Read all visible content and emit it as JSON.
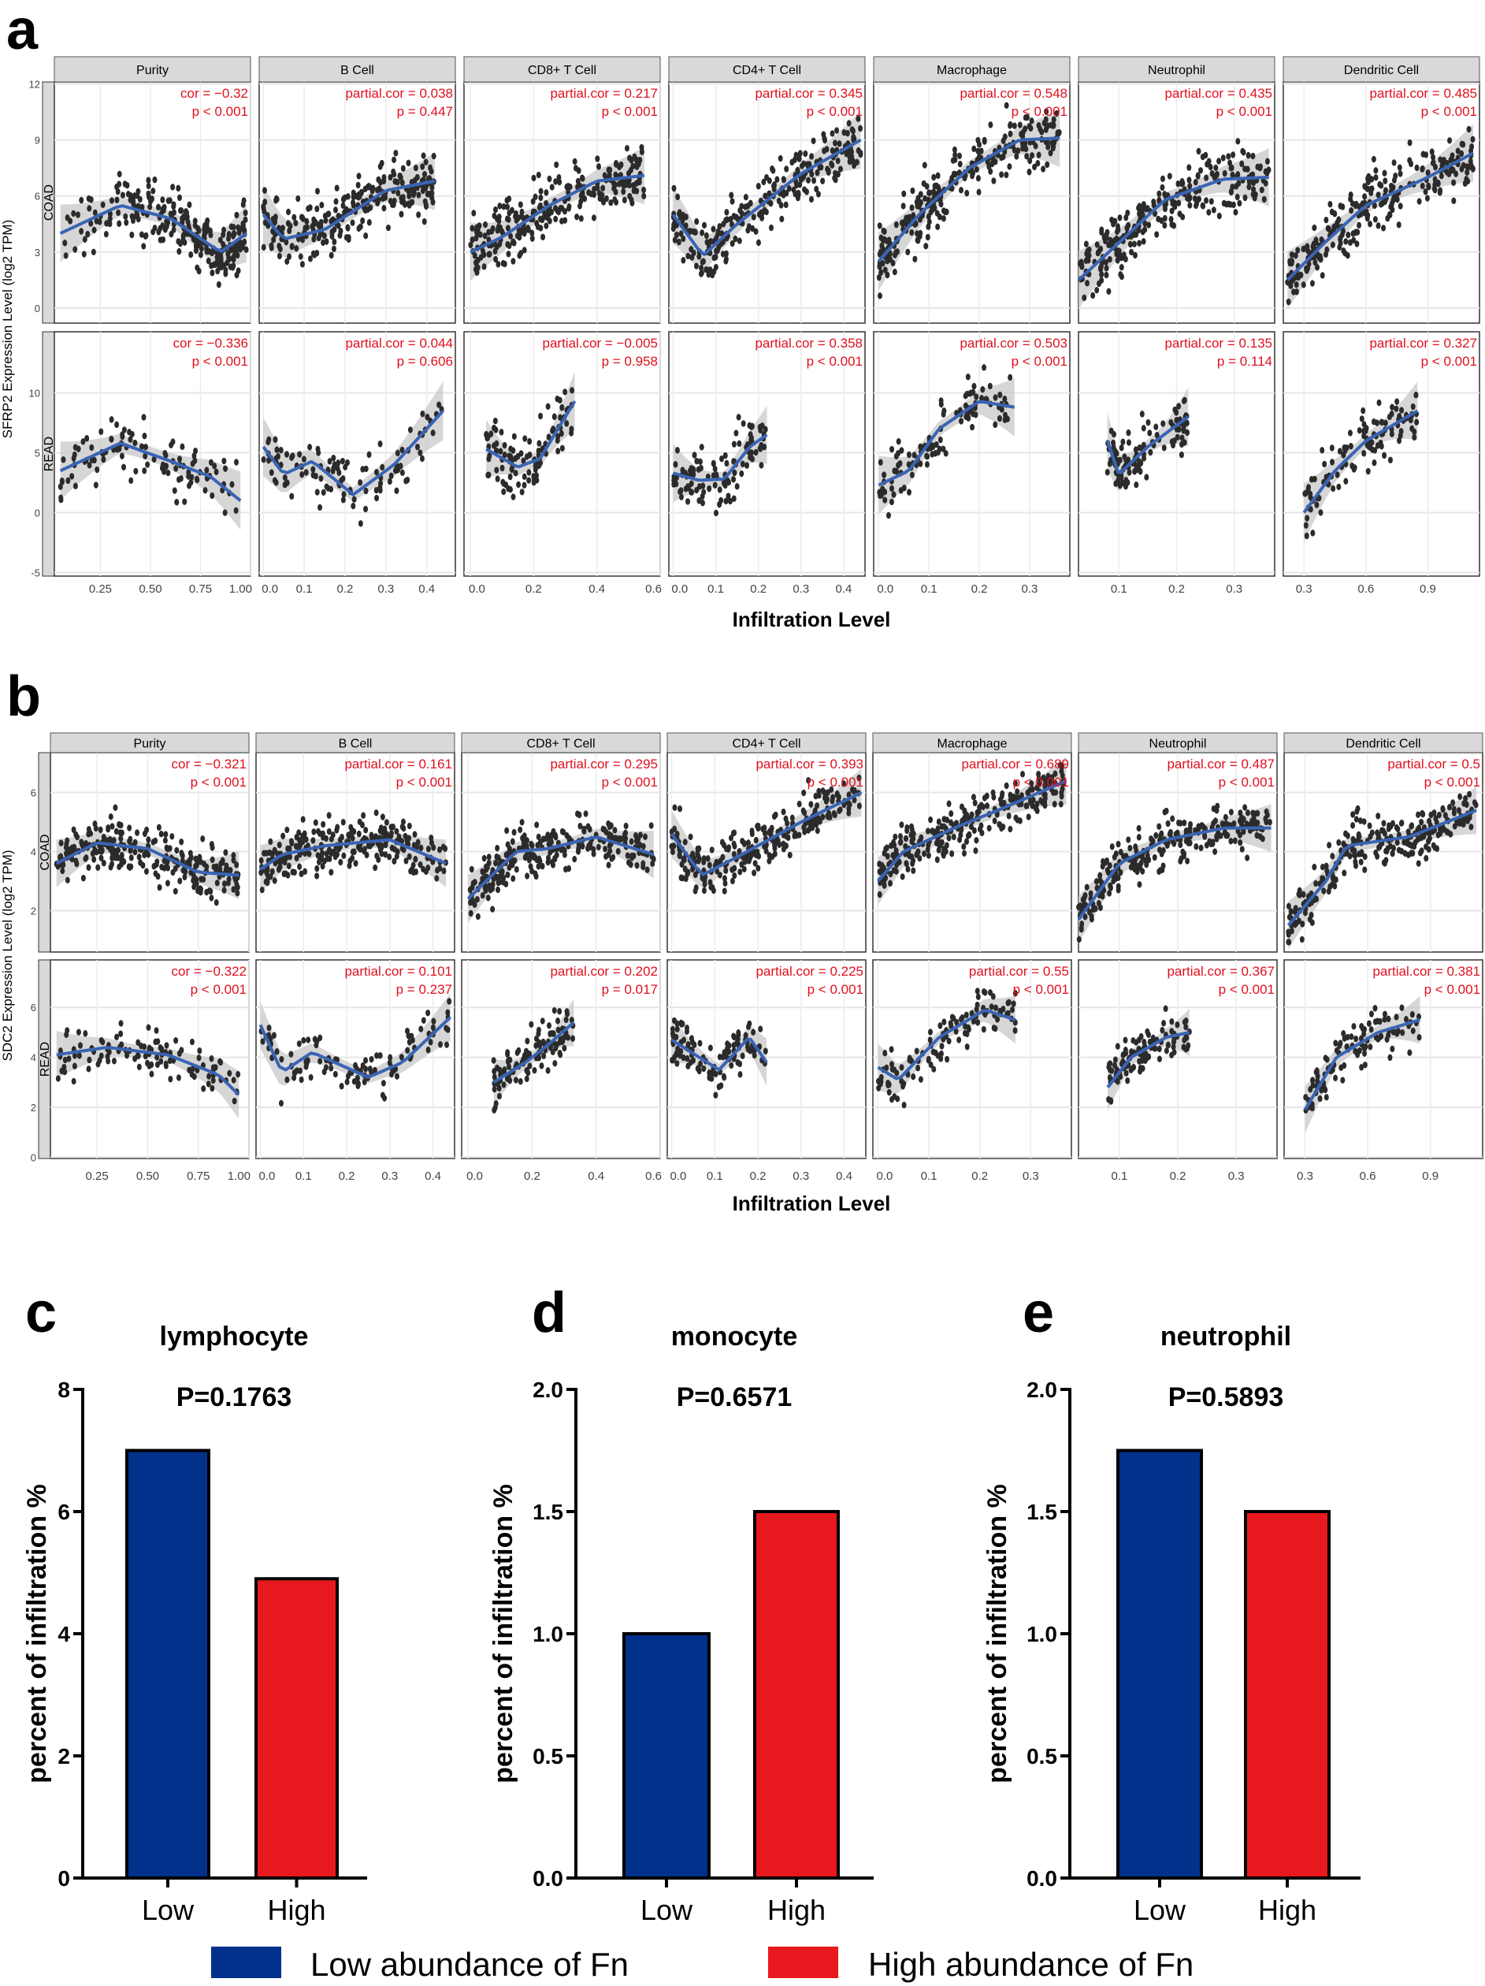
{
  "colors": {
    "low": "#02318c",
    "high": "#e8191e",
    "trend": "#3a64b4",
    "annotation": "#e0101e",
    "point": "#2b2b2b",
    "strip": "#d9d9d9"
  },
  "chart_data": [
    {
      "type": "scatter",
      "panel_label": "a",
      "ylabel": "SFRP2 Expression Level (log2 TPM)",
      "xlabel": "Infiltration Level",
      "facets": [
        "Purity",
        "B Cell",
        "CD8+ T Cell",
        "CD4+ T Cell",
        "Macrophage",
        "Neutrophil",
        "Dendritic Cell"
      ],
      "xlim": [
        [
          0.02,
          1.0
        ],
        [
          -0.01,
          0.47
        ],
        [
          -0.02,
          0.6
        ],
        [
          -0.01,
          0.45
        ],
        [
          -0.01,
          0.38
        ],
        [
          0.03,
          0.37
        ],
        [
          0.2,
          1.15
        ]
      ],
      "xticks": [
        [
          "0.25",
          "0.50",
          "0.75",
          "1.00"
        ],
        [
          "0.0",
          "0.1",
          "0.2",
          "0.3",
          "0.4"
        ],
        [
          "0.0",
          "0.2",
          "0.4",
          "0.6"
        ],
        [
          "0.0",
          "0.1",
          "0.2",
          "0.3",
          "0.4"
        ],
        [
          "0.0",
          "0.1",
          "0.2",
          "0.3"
        ],
        [
          "0.1",
          "0.2",
          "0.3"
        ],
        [
          "0.3",
          "0.6",
          "0.9"
        ]
      ],
      "rows": [
        {
          "name": "COAD",
          "ylim": [
            -0.8,
            12.1
          ],
          "yticks": [
            "0",
            "3",
            "6",
            "9",
            "12"
          ],
          "annotations": [
            [
              "cor = −0.32",
              "p < 0.001"
            ],
            [
              "partial.cor = 0.038",
              "p = 0.447"
            ],
            [
              "partial.cor = 0.217",
              "p < 0.001"
            ],
            [
              "partial.cor = 0.345",
              "p < 0.001"
            ],
            [
              "partial.cor = 0.548",
              "p < 0.001"
            ],
            [
              "partial.cor = 0.435",
              "p < 0.001"
            ],
            [
              "partial.cor = 0.485",
              "p < 0.001"
            ]
          ],
          "trend": [
            [
              [
                0.05,
                4
              ],
              [
                0.35,
                5.5
              ],
              [
                0.6,
                4.8
              ],
              [
                0.85,
                3
              ],
              [
                0.98,
                4
              ]
            ],
            [
              [
                0.0,
                5
              ],
              [
                0.05,
                3.7
              ],
              [
                0.15,
                4.2
              ],
              [
                0.3,
                6.3
              ],
              [
                0.42,
                6.8
              ]
            ],
            [
              [
                0.0,
                3
              ],
              [
                0.1,
                3.8
              ],
              [
                0.25,
                5.5
              ],
              [
                0.4,
                6.8
              ],
              [
                0.55,
                7.1
              ]
            ],
            [
              [
                0.0,
                5
              ],
              [
                0.07,
                2.8
              ],
              [
                0.15,
                4.5
              ],
              [
                0.3,
                7.2
              ],
              [
                0.44,
                9
              ]
            ],
            [
              [
                0.0,
                2.5
              ],
              [
                0.08,
                5
              ],
              [
                0.18,
                7.5
              ],
              [
                0.28,
                9
              ],
              [
                0.36,
                9.1
              ]
            ],
            [
              [
                0.03,
                1.5
              ],
              [
                0.1,
                3.5
              ],
              [
                0.18,
                5.8
              ],
              [
                0.28,
                6.9
              ],
              [
                0.36,
                7
              ]
            ],
            [
              [
                0.22,
                1.5
              ],
              [
                0.4,
                3.5
              ],
              [
                0.6,
                5.5
              ],
              [
                0.9,
                7
              ],
              [
                1.12,
                8.3
              ]
            ]
          ]
        },
        {
          "name": "READ",
          "ylim": [
            -5.3,
            15.1
          ],
          "yticks": [
            "-5",
            "0",
            "5",
            "10"
          ],
          "annotations": [
            [
              "cor = −0.336",
              "p < 0.001"
            ],
            [
              "partial.cor = 0.044",
              "p = 0.606"
            ],
            [
              "partial.cor = −0.005",
              "p = 0.958"
            ],
            [
              "partial.cor = 0.358",
              "p < 0.001"
            ],
            [
              "partial.cor = 0.503",
              "p < 0.001"
            ],
            [
              "partial.cor = 0.135",
              "p = 0.114"
            ],
            [
              "partial.cor = 0.327",
              "p < 0.001"
            ]
          ],
          "trend": [
            [
              [
                0.05,
                3.5
              ],
              [
                0.35,
                5.8
              ],
              [
                0.6,
                4.3
              ],
              [
                0.8,
                3
              ],
              [
                0.95,
                1
              ]
            ],
            [
              [
                0.0,
                5.5
              ],
              [
                0.05,
                3.2
              ],
              [
                0.12,
                4.3
              ],
              [
                0.22,
                1.5
              ],
              [
                0.32,
                4
              ],
              [
                0.44,
                8.5
              ]
            ],
            [
              [
                0.05,
                5.3
              ],
              [
                0.15,
                3.8
              ],
              [
                0.22,
                4.5
              ],
              [
                0.3,
                8
              ],
              [
                0.33,
                9.3
              ]
            ],
            [
              [
                0.0,
                3.3
              ],
              [
                0.06,
                2.7
              ],
              [
                0.12,
                2.8
              ],
              [
                0.18,
                5.5
              ],
              [
                0.22,
                6.5
              ]
            ],
            [
              [
                0.0,
                2.3
              ],
              [
                0.06,
                3.5
              ],
              [
                0.12,
                7
              ],
              [
                0.2,
                9.3
              ],
              [
                0.27,
                8.8
              ]
            ],
            [
              [
                0.08,
                6
              ],
              [
                0.1,
                3.2
              ],
              [
                0.15,
                5.5
              ],
              [
                0.22,
                8
              ]
            ],
            [
              [
                0.3,
                0
              ],
              [
                0.45,
                3.5
              ],
              [
                0.6,
                6
              ],
              [
                0.85,
                8.5
              ]
            ]
          ]
        }
      ]
    },
    {
      "type": "scatter",
      "panel_label": "b",
      "ylabel": "SDC2 Expression Level (log2 TPM)",
      "xlabel": "Infiltration Level",
      "facets": [
        "Purity",
        "B Cell",
        "CD8+ T Cell",
        "CD4+ T Cell",
        "Macrophage",
        "Neutrophil",
        "Dendritic Cell"
      ],
      "xlim": [
        [
          0.02,
          1.0
        ],
        [
          -0.01,
          0.45
        ],
        [
          -0.02,
          0.6
        ],
        [
          -0.01,
          0.45
        ],
        [
          -0.01,
          0.38
        ],
        [
          0.03,
          0.37
        ],
        [
          0.2,
          1.15
        ]
      ],
      "xticks": [
        [
          "0.25",
          "0.50",
          "0.75",
          "1.00"
        ],
        [
          "0.0",
          "0.1",
          "0.2",
          "0.3",
          "0.4"
        ],
        [
          "0.0",
          "0.2",
          "0.4",
          "0.6"
        ],
        [
          "0.0",
          "0.1",
          "0.2",
          "0.3",
          "0.4"
        ],
        [
          "0.0",
          "0.1",
          "0.2",
          "0.3"
        ],
        [
          "0.1",
          "0.2",
          "0.3"
        ],
        [
          "0.3",
          "0.6",
          "0.9"
        ]
      ],
      "rows": [
        {
          "name": "COAD",
          "ylim": [
            0.6,
            7.35
          ],
          "yticks": [
            "2",
            "4",
            "6"
          ],
          "annotations": [
            [
              "cor = −0.321",
              "p < 0.001"
            ],
            [
              "partial.cor = 0.161",
              "p < 0.001"
            ],
            [
              "partial.cor = 0.295",
              "p < 0.001"
            ],
            [
              "partial.cor = 0.393",
              "p < 0.001"
            ],
            [
              "partial.cor = 0.689",
              "p < 0.001"
            ],
            [
              "partial.cor = 0.487",
              "p < 0.001"
            ],
            [
              "partial.cor = 0.5",
              "p < 0.001"
            ]
          ],
          "trend": [
            [
              [
                0.05,
                3.6
              ],
              [
                0.25,
                4.3
              ],
              [
                0.5,
                4.1
              ],
              [
                0.75,
                3.3
              ],
              [
                0.95,
                3.2
              ]
            ],
            [
              [
                0.0,
                3.4
              ],
              [
                0.05,
                3.9
              ],
              [
                0.15,
                4.2
              ],
              [
                0.3,
                4.4
              ],
              [
                0.43,
                3.6
              ]
            ],
            [
              [
                0.0,
                2.4
              ],
              [
                0.15,
                4.0
              ],
              [
                0.25,
                4.1
              ],
              [
                0.4,
                4.5
              ],
              [
                0.58,
                3.9
              ]
            ],
            [
              [
                0.0,
                4.6
              ],
              [
                0.07,
                3.2
              ],
              [
                0.15,
                3.8
              ],
              [
                0.3,
                5
              ],
              [
                0.44,
                6
              ]
            ],
            [
              [
                0.0,
                3
              ],
              [
                0.05,
                4
              ],
              [
                0.15,
                4.8
              ],
              [
                0.25,
                5.5
              ],
              [
                0.37,
                6.4
              ]
            ],
            [
              [
                0.03,
                1.7
              ],
              [
                0.1,
                3.6
              ],
              [
                0.18,
                4.4
              ],
              [
                0.28,
                4.8
              ],
              [
                0.36,
                4.8
              ]
            ],
            [
              [
                0.22,
                1.5
              ],
              [
                0.4,
                3
              ],
              [
                0.5,
                4.2
              ],
              [
                0.8,
                4.5
              ],
              [
                1.12,
                5.4
              ]
            ]
          ]
        },
        {
          "name": "READ",
          "ylim": [
            -0.05,
            7.9
          ],
          "yticks": [
            "0",
            "2",
            "4",
            "6"
          ],
          "annotations": [
            [
              "cor = −0.322",
              "p < 0.001"
            ],
            [
              "partial.cor = 0.101",
              "p = 0.237"
            ],
            [
              "partial.cor = 0.202",
              "p = 0.017"
            ],
            [
              "partial.cor = 0.225",
              "p < 0.001"
            ],
            [
              "partial.cor = 0.55",
              "p < 0.001"
            ],
            [
              "partial.cor = 0.367",
              "p < 0.001"
            ],
            [
              "partial.cor = 0.381",
              "p < 0.001"
            ]
          ],
          "trend": [
            [
              [
                0.05,
                4.1
              ],
              [
                0.3,
                4.4
              ],
              [
                0.6,
                4.1
              ],
              [
                0.85,
                3.3
              ],
              [
                0.95,
                2.5
              ]
            ],
            [
              [
                0.0,
                5.3
              ],
              [
                0.05,
                3.4
              ],
              [
                0.12,
                4.2
              ],
              [
                0.25,
                3.2
              ],
              [
                0.33,
                3.8
              ],
              [
                0.44,
                5.6
              ]
            ],
            [
              [
                0.08,
                3
              ],
              [
                0.18,
                3.8
              ],
              [
                0.25,
                4.5
              ],
              [
                0.33,
                5.4
              ]
            ],
            [
              [
                0.0,
                4.7
              ],
              [
                0.11,
                3.5
              ],
              [
                0.18,
                4.8
              ],
              [
                0.22,
                3.8
              ]
            ],
            [
              [
                0.0,
                3.6
              ],
              [
                0.04,
                3.1
              ],
              [
                0.12,
                4.8
              ],
              [
                0.21,
                5.9
              ],
              [
                0.27,
                5.5
              ]
            ],
            [
              [
                0.08,
                2.8
              ],
              [
                0.12,
                4
              ],
              [
                0.18,
                4.8
              ],
              [
                0.22,
                5
              ]
            ],
            [
              [
                0.3,
                1.9
              ],
              [
                0.45,
                4
              ],
              [
                0.65,
                5
              ],
              [
                0.85,
                5.5
              ]
            ]
          ]
        }
      ]
    },
    {
      "type": "bar",
      "panel_label": "c",
      "title": "lymphocyte",
      "pvalue": "P=0.1763",
      "ylabel": "percent of infiltration %",
      "categories": [
        "Low",
        "High"
      ],
      "values": [
        7.0,
        4.9
      ],
      "ylim": [
        0,
        8
      ],
      "yticks": [
        "0",
        "2",
        "4",
        "6",
        "8"
      ]
    },
    {
      "type": "bar",
      "panel_label": "d",
      "title": "monocyte",
      "pvalue": "P=0.6571",
      "ylabel": "percent of infiltration %",
      "categories": [
        "Low",
        "High"
      ],
      "values": [
        1.0,
        1.5
      ],
      "ylim": [
        0,
        2.0
      ],
      "yticks": [
        "0.0",
        "0.5",
        "1.0",
        "1.5",
        "2.0"
      ]
    },
    {
      "type": "bar",
      "panel_label": "e",
      "title": "neutrophil",
      "pvalue": "P=0.5893",
      "ylabel": "percent of infiltration %",
      "categories": [
        "Low",
        "High"
      ],
      "values": [
        1.75,
        1.5
      ],
      "ylim": [
        0,
        2.0
      ],
      "yticks": [
        "0.0",
        "0.5",
        "1.0",
        "1.5",
        "2.0"
      ]
    }
  ],
  "legend": [
    {
      "label": "Low abundance of Fn",
      "color": "#02318c"
    },
    {
      "label": "High abundance of Fn",
      "color": "#e8191e"
    }
  ]
}
